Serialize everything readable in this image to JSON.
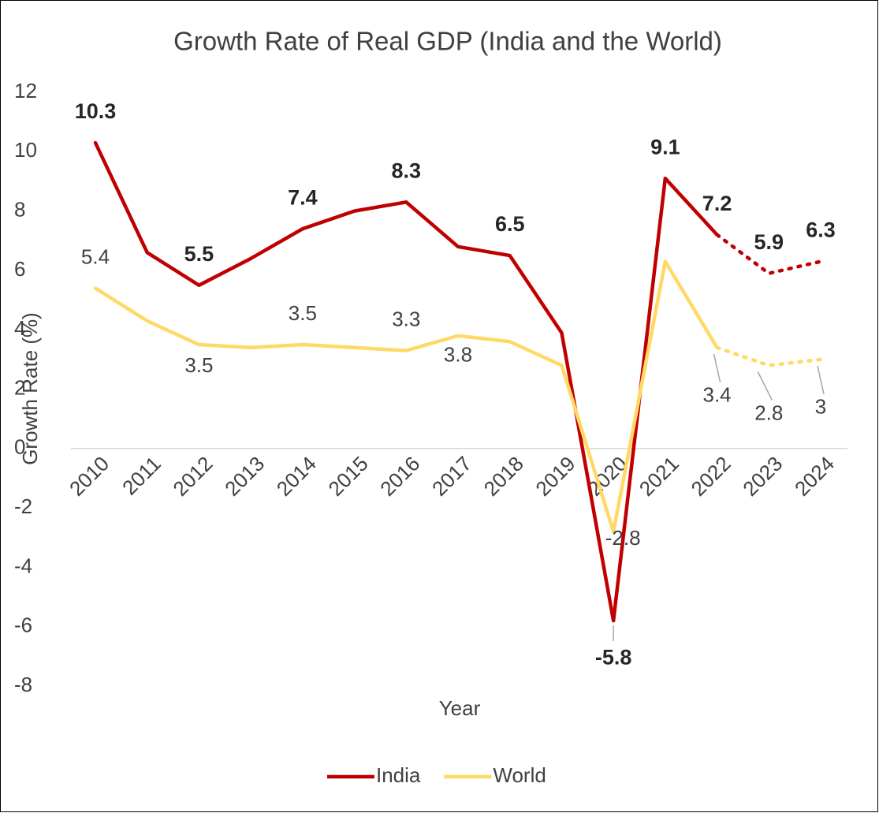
{
  "chart_data": {
    "type": "line",
    "title": "Growth Rate of Real GDP (India and the World)",
    "x_label": "Year",
    "y_label": "Growth Rate (%)",
    "categories": [
      "2010",
      "2011",
      "2012",
      "2013",
      "2014",
      "2015",
      "2016",
      "2017",
      "2018",
      "2019",
      "2020",
      "2021",
      "2022",
      "2023",
      "2024"
    ],
    "series": [
      {
        "name": "India",
        "color": "#c00000",
        "dotted_from_index": 12,
        "values": [
          10.3,
          6.6,
          5.5,
          6.4,
          7.4,
          8.0,
          8.3,
          6.8,
          6.5,
          3.9,
          -5.8,
          9.1,
          7.2,
          5.9,
          6.3
        ],
        "value_labels": [
          "10.3",
          null,
          "5.5",
          null,
          "7.4",
          null,
          "8.3",
          null,
          "6.5",
          null,
          "-5.8",
          "9.1",
          "7.2",
          "5.9",
          "6.3"
        ]
      },
      {
        "name": "World",
        "color": "#ffd966",
        "dotted_from_index": 12,
        "values": [
          5.4,
          4.3,
          3.5,
          3.4,
          3.5,
          3.4,
          3.3,
          3.8,
          3.6,
          2.8,
          -2.8,
          6.3,
          3.4,
          2.8,
          3
        ],
        "value_labels": [
          "5.4",
          null,
          "3.5",
          null,
          "3.5",
          null,
          "3.3",
          "3.8",
          null,
          null,
          "-2.8",
          null,
          "3.4",
          "2.8",
          "3"
        ]
      }
    ],
    "ylim": [
      -8,
      12
    ],
    "yticks": [
      -8,
      -6,
      -4,
      -2,
      0,
      2,
      4,
      6,
      8,
      10,
      12
    ],
    "legend": "bottom"
  }
}
